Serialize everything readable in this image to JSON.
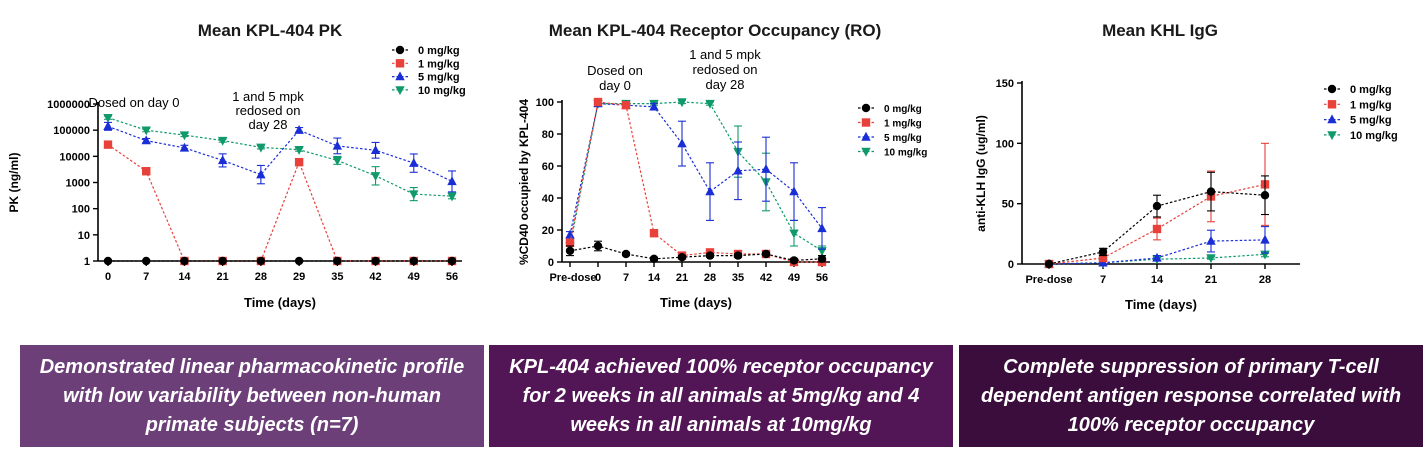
{
  "colors": {
    "series": [
      "#000000",
      "#e8413b",
      "#1a2ed6",
      "#109a6a"
    ],
    "banners": [
      "#6c3f79",
      "#521556",
      "#3a0d3c"
    ]
  },
  "chart_data": [
    {
      "id": "pk",
      "type": "line",
      "title": "Mean KPL-404 PK",
      "xlabel": "Time (days)",
      "ylabel": "PK (ng/ml)",
      "yscale": "log",
      "ylim": [
        1,
        1000000
      ],
      "categories": [
        "0",
        "7",
        "14",
        "21",
        "28",
        "29",
        "35",
        "42",
        "49",
        "56"
      ],
      "ytick_labels": [
        "1",
        "10",
        "100",
        "1000",
        "10000",
        "100000",
        "1000000"
      ],
      "legend": [
        "0 mg/kg",
        "1 mg/kg",
        "5 mg/kg",
        "10 mg/kg"
      ],
      "annotations": [
        {
          "lines": [
            "Dosed on day 0"
          ]
        },
        {
          "lines": [
            "1 and 5 mpk",
            "redosed on",
            "day 28"
          ]
        }
      ],
      "series": [
        {
          "name": "0 mg/kg",
          "values": [
            1,
            1,
            1,
            1,
            1,
            1,
            1,
            1,
            1,
            1
          ],
          "errors": [
            0,
            0,
            0,
            0,
            0,
            0,
            0,
            0,
            0,
            0
          ]
        },
        {
          "name": "1 mg/kg",
          "values": [
            28000,
            2700,
            1,
            1,
            1,
            6000,
            1,
            1,
            1,
            1
          ],
          "errors": [
            0,
            0,
            0,
            0,
            0,
            0,
            0,
            0,
            0,
            0
          ]
        },
        {
          "name": "5 mg/kg",
          "values": [
            140000,
            40000,
            21000,
            7000,
            2000,
            100000,
            25000,
            17000,
            5500,
            1100
          ],
          "errors": [
            0.15,
            0.08,
            0.1,
            0.25,
            0.35,
            0.1,
            0.3,
            0.3,
            0.35,
            0.4
          ]
        },
        {
          "name": "10 mg/kg",
          "values": [
            300000,
            100000,
            65000,
            40000,
            22000,
            18000,
            7000,
            1800,
            360,
            300
          ],
          "errors": [
            0.06,
            0.06,
            0.06,
            0.06,
            0.06,
            0.06,
            0.15,
            0.35,
            0.25,
            0.1
          ]
        }
      ]
    },
    {
      "id": "ro",
      "type": "line",
      "title": "Mean KPL-404 Receptor Occupancy (RO)",
      "xlabel": "Time (days)",
      "ylabel": "%CD40 occupied by KPL-404",
      "ylim": [
        0,
        100
      ],
      "categories": [
        "Pre-dose",
        "0",
        "7",
        "14",
        "21",
        "28",
        "35",
        "42",
        "49",
        "56"
      ],
      "ytick_labels": [
        "0",
        "20",
        "40",
        "60",
        "80",
        "100"
      ],
      "legend": [
        "0 mg/kg",
        "1 mg/kg",
        "5 mg/kg",
        "10 mg/kg"
      ],
      "annotations": [
        {
          "lines": [
            "Dosed on",
            "day 0"
          ]
        },
        {
          "lines": [
            "1 and 5 mpk",
            "redosed on",
            "day 28"
          ]
        }
      ],
      "series": [
        {
          "name": "0 mg/kg",
          "values": [
            7,
            10,
            5,
            2,
            3,
            4,
            4,
            5,
            1,
            2
          ],
          "errors": [
            3,
            3,
            1,
            1,
            1,
            1,
            1,
            1,
            1,
            2
          ]
        },
        {
          "name": "1 mg/kg",
          "values": [
            12,
            100,
            98,
            18,
            4,
            6,
            5,
            5,
            0,
            0
          ],
          "errors": [
            2,
            1,
            1,
            2,
            1,
            2,
            1,
            2,
            2,
            2
          ]
        },
        {
          "name": "5 mg/kg",
          "values": [
            17,
            99,
            98,
            97,
            74,
            44,
            57,
            58,
            44,
            21
          ],
          "errors": [
            2,
            1,
            1,
            2,
            14,
            18,
            18,
            20,
            18,
            13
          ]
        },
        {
          "name": "10 mg/kg",
          "values": [
            10,
            99,
            99,
            99,
            100,
            99,
            69,
            50,
            18,
            7
          ],
          "errors": [
            2,
            1,
            1,
            1,
            1,
            1,
            16,
            18,
            8,
            3
          ]
        }
      ]
    },
    {
      "id": "igg",
      "type": "line",
      "title": "Mean KHL IgG",
      "xlabel": "Time (days)",
      "ylabel": "anti-KLH IgG (ug/ml)",
      "ylim": [
        0,
        150
      ],
      "categories": [
        "Pre-dose",
        "7",
        "14",
        "21",
        "28"
      ],
      "ytick_labels": [
        "0",
        "50",
        "100",
        "150"
      ],
      "legend": [
        "0 mg/kg",
        "1 mg/kg",
        "5 mg/kg",
        "10 mg/kg"
      ],
      "annotations": [],
      "series": [
        {
          "name": "0 mg/kg",
          "values": [
            0,
            10,
            48,
            60,
            57
          ],
          "errors": [
            0,
            3,
            9,
            16,
            16
          ]
        },
        {
          "name": "1 mg/kg",
          "values": [
            0,
            5,
            29,
            56,
            66
          ],
          "errors": [
            0,
            2,
            9,
            21,
            34
          ]
        },
        {
          "name": "5 mg/kg",
          "values": [
            0,
            1,
            5,
            19,
            20
          ],
          "errors": [
            0,
            1,
            2,
            9,
            11
          ]
        },
        {
          "name": "10 mg/kg",
          "values": [
            0,
            1,
            4,
            5,
            8
          ],
          "errors": [
            0,
            0,
            1,
            1,
            2
          ]
        }
      ]
    }
  ],
  "banners": [
    "Demonstrated linear pharmacokinetic profile with low variability between non-human primate subjects (n=7)",
    "KPL-404 achieved 100% receptor occupancy for 2 weeks in all animals at 5mg/kg and 4 weeks in all animals at 10mg/kg",
    "Complete suppression of primary T-cell dependent antigen response correlated with 100% receptor occupancy"
  ]
}
